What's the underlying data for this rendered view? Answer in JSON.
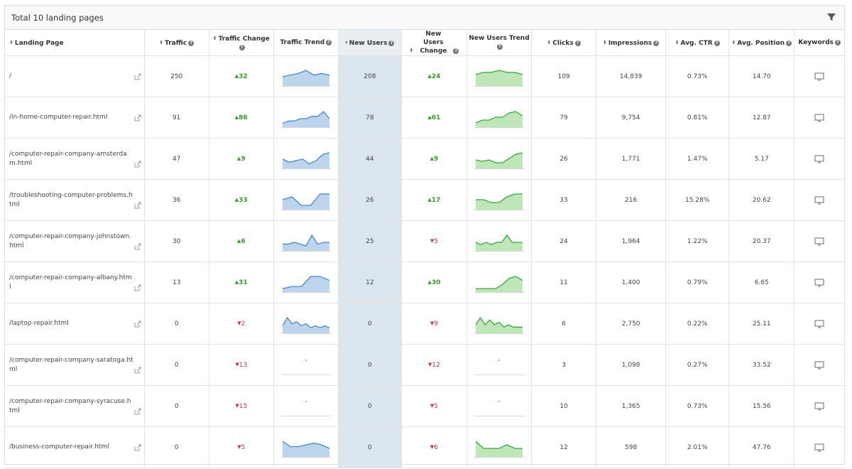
{
  "title": "Total 10 landing pages",
  "headers": {
    "landing_page": "Landing Page",
    "traffic": "Traffic",
    "traffic_change": "Traffic Change",
    "traffic_trend": "Traffic Trend",
    "new_users": "New Users",
    "new_users_change": "New Users Change",
    "new_users_trend": "New Users Trend",
    "clicks": "Clicks",
    "impressions": "Impressions",
    "avg_ctr": "Avg. CTR",
    "avg_position": "Avg. Position",
    "keywords": "Keywords"
  },
  "colors": {
    "traffic_line": "#4a86c8",
    "traffic_fill": "#bcd4ec",
    "users_line": "#3aa53a",
    "users_fill": "#bfe6b9",
    "up": "#3a9b2e",
    "down": "#c23b3b"
  },
  "rows": [
    {
      "page": "/",
      "traffic": "250",
      "traffic_change": "32",
      "traffic_dir": "up",
      "new_users": "208",
      "users_change": "24",
      "users_dir": "up",
      "clicks": "109",
      "impressions": "14,839",
      "ctr": "0.73%",
      "position": "14.70",
      "traffic_trend": [
        5,
        6,
        7,
        9,
        6,
        7,
        6
      ],
      "users_trend": [
        5,
        6,
        6,
        7,
        6,
        6,
        5
      ]
    },
    {
      "page": "/in-home-computer-repair.html",
      "traffic": "91",
      "traffic_change": "86",
      "traffic_dir": "up",
      "new_users": "78",
      "users_change": "61",
      "users_dir": "up",
      "clicks": "79",
      "impressions": "9,754",
      "ctr": "0.81%",
      "position": "12.87",
      "traffic_trend": [
        1,
        2,
        2,
        3,
        3,
        4,
        4,
        6,
        3
      ],
      "users_trend": [
        2,
        4,
        4,
        6,
        6,
        9,
        10,
        7
      ]
    },
    {
      "page": "/computer-repair-company-amsterdam.html",
      "traffic": "47",
      "traffic_change": "9",
      "traffic_dir": "up",
      "new_users": "44",
      "users_change": "9",
      "users_dir": "up",
      "clicks": "26",
      "impressions": "1,771",
      "ctr": "1.47%",
      "position": "5.17",
      "traffic_trend": [
        5,
        3,
        4,
        5,
        2,
        4,
        8,
        9
      ],
      "users_trend": [
        5,
        4,
        5,
        3,
        3,
        6,
        9,
        10
      ]
    },
    {
      "page": "/troubleshooting-computer-problems.html",
      "traffic": "36",
      "traffic_change": "33",
      "traffic_dir": "up",
      "new_users": "26",
      "users_change": "17",
      "users_dir": "up",
      "clicks": "33",
      "impressions": "216",
      "ctr": "15.28%",
      "position": "20.62",
      "traffic_trend": [
        3,
        4,
        1,
        1,
        5,
        5
      ],
      "users_trend": [
        3,
        3,
        2,
        2,
        4,
        5,
        5
      ]
    },
    {
      "page": "/computer-repair-company-johnstown.html",
      "traffic": "30",
      "traffic_change": "6",
      "traffic_dir": "up",
      "new_users": "25",
      "users_change": "5",
      "users_dir": "down",
      "clicks": "24",
      "impressions": "1,964",
      "ctr": "1.22%",
      "position": "20.37",
      "traffic_trend": [
        3,
        3,
        4,
        3,
        2,
        8,
        3,
        4,
        4
      ],
      "users_trend": [
        3,
        2,
        3,
        2,
        3,
        3,
        6,
        3,
        3,
        3
      ]
    },
    {
      "page": "/computer-repair-company-albany.html",
      "traffic": "13",
      "traffic_change": "31",
      "traffic_dir": "up",
      "new_users": "12",
      "users_change": "30",
      "users_dir": "up",
      "clicks": "11",
      "impressions": "1,400",
      "ctr": "0.79%",
      "position": "6.65",
      "traffic_trend": [
        1,
        2,
        2,
        7,
        7,
        5
      ],
      "users_trend": [
        1,
        1,
        1,
        1,
        3,
        6,
        7,
        5
      ]
    },
    {
      "page": "/laptop-repair.html",
      "traffic": "0",
      "traffic_change": "2",
      "traffic_dir": "down",
      "new_users": "0",
      "users_change": "9",
      "users_dir": "down",
      "clicks": "6",
      "impressions": "2,750",
      "ctr": "0.22%",
      "position": "25.11",
      "traffic_trend": [
        3,
        7,
        4,
        5,
        3,
        4,
        2,
        3,
        2,
        3,
        2
      ],
      "users_trend": [
        3,
        6,
        3,
        5,
        3,
        4,
        2,
        3,
        2,
        2,
        2
      ]
    },
    {
      "page": "/computer-repair-company-saratoga.html",
      "traffic": "0",
      "traffic_change": "13",
      "traffic_dir": "down",
      "new_users": "0",
      "users_change": "12",
      "users_dir": "down",
      "clicks": "3",
      "impressions": "1,098",
      "ctr": "0.27%",
      "position": "33.52",
      "traffic_trend": [],
      "users_trend": []
    },
    {
      "page": "/computer-repair-company-syracuse.html",
      "traffic": "0",
      "traffic_change": "15",
      "traffic_dir": "down",
      "new_users": "0",
      "users_change": "5",
      "users_dir": "down",
      "clicks": "10",
      "impressions": "1,365",
      "ctr": "0.73%",
      "position": "15.56",
      "traffic_trend": [],
      "users_trend": []
    },
    {
      "page": "/business-computer-repair.html",
      "traffic": "0",
      "traffic_change": "5",
      "traffic_dir": "down",
      "new_users": "0",
      "users_change": "6",
      "users_dir": "down",
      "clicks": "12",
      "impressions": "598",
      "ctr": "2.01%",
      "position": "47.76",
      "traffic_trend": [
        8,
        5,
        5,
        6,
        7,
        6,
        4
      ],
      "users_trend": [
        4,
        2,
        2,
        2,
        3,
        2,
        2
      ]
    }
  ]
}
